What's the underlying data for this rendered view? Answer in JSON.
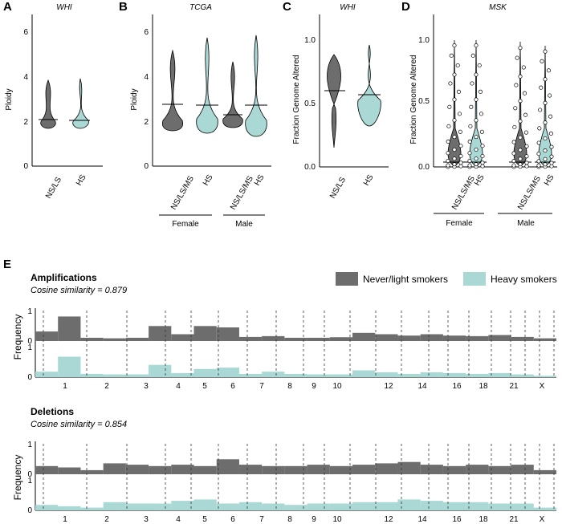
{
  "colors": {
    "grey": "#6d6d6d",
    "teal": "#a9d8d5",
    "teal_stroke": "#5aa9a5",
    "dark": "#000000"
  },
  "chart_data": [
    {
      "panel": "A",
      "type": "violin",
      "title": "WHI",
      "ylabel": "Ploidy",
      "ylim": [
        0,
        6.5
      ],
      "yticks": [
        "0",
        "2",
        "4",
        "6"
      ],
      "categories": [
        "NS/LS",
        "HS"
      ],
      "series": [
        {
          "category": "NS/LS",
          "color": "grey",
          "median": 2.1,
          "min": 1.7,
          "max": 3.7
        },
        {
          "category": "HS",
          "color": "teal",
          "median": 2.05,
          "min": 1.7,
          "max": 3.8
        }
      ]
    },
    {
      "panel": "B",
      "type": "violin",
      "title": "TCGA",
      "ylabel": "Ploidy",
      "ylim": [
        0,
        6.5
      ],
      "yticks": [
        "0",
        "2",
        "4",
        "6"
      ],
      "categories": [
        "NS/LS/MS",
        "HS",
        "NS/LS/MS",
        "HS"
      ],
      "groups": [
        "Female",
        "Male"
      ],
      "series": [
        {
          "category": "NS/LS/MS",
          "group": "Female",
          "color": "grey",
          "median": 2.75,
          "min": 1.6,
          "max": 5.1
        },
        {
          "category": "HS",
          "group": "Female",
          "color": "teal",
          "median": 2.7,
          "min": 1.5,
          "max": 5.7
        },
        {
          "category": "NS/LS/MS",
          "group": "Male",
          "color": "grey",
          "median": 2.3,
          "min": 1.8,
          "max": 4.6
        },
        {
          "category": "HS",
          "group": "Male",
          "color": "teal",
          "median": 2.7,
          "min": 1.3,
          "max": 5.8
        }
      ]
    },
    {
      "panel": "C",
      "type": "violin",
      "title": "WHI",
      "ylabel": "Fraction Genome Altered",
      "ylim": [
        0,
        1.1
      ],
      "yticks": [
        "0.0",
        "0.5",
        "1.0"
      ],
      "categories": [
        "NS/LS",
        "HS"
      ],
      "series": [
        {
          "category": "NS/LS",
          "color": "grey",
          "median": 0.6,
          "min": 0.15,
          "max": 0.88
        },
        {
          "category": "HS",
          "color": "teal",
          "median": 0.57,
          "min": 0.32,
          "max": 0.96
        }
      ]
    },
    {
      "panel": "D",
      "type": "violin",
      "title": "MSK",
      "ylabel": "Fraction Genome Altered",
      "ylim": [
        0,
        1.05
      ],
      "yticks": [
        "0.0",
        "0.5",
        "1.0"
      ],
      "categories": [
        "NS/LS/MS",
        "HS",
        "NS/LS/MS",
        "HS"
      ],
      "groups": [
        "Female",
        "Male"
      ],
      "series": [
        {
          "category": "NS/LS/MS",
          "group": "Female",
          "color": "grey",
          "median": 0.03,
          "min": 0,
          "max": 1.0
        },
        {
          "category": "HS",
          "group": "Female",
          "color": "teal",
          "median": 0.03,
          "min": 0,
          "max": 1.0
        },
        {
          "category": "NS/LS/MS",
          "group": "Male",
          "color": "grey",
          "median": 0.03,
          "min": 0,
          "max": 0.98
        },
        {
          "category": "HS",
          "group": "Male",
          "color": "teal",
          "median": 0.03,
          "min": 0,
          "max": 0.95
        }
      ]
    },
    {
      "panel": "E",
      "type": "area",
      "subtitle": "Amplifications",
      "cosine": "Cosine similarity = 0.879",
      "ylabel": "Frequency",
      "yticks": [
        "0",
        "1"
      ],
      "chromosomes": [
        "1",
        "2",
        "3",
        "4",
        "5",
        "6",
        "7",
        "8",
        "9",
        "10",
        "12",
        "14",
        "16",
        "18",
        "21",
        "X"
      ],
      "legend": [
        "Never/light smokers",
        "Heavy smokers"
      ],
      "series": [
        {
          "name": "Never/light smokers",
          "color": "grey",
          "values": [
            0.35,
            0.9,
            0.12,
            0.1,
            0.12,
            0.55,
            0.25,
            0.55,
            0.5,
            0.15,
            0.18,
            0.12,
            0.12,
            0.14,
            0.3,
            0.25,
            0.2,
            0.25,
            0.2,
            0.18,
            0.22,
            0.15,
            0.1
          ]
        },
        {
          "name": "Heavy smokers",
          "color": "teal",
          "values": [
            0.2,
            0.75,
            0.12,
            0.1,
            0.1,
            0.45,
            0.15,
            0.3,
            0.35,
            0.12,
            0.2,
            0.12,
            0.1,
            0.1,
            0.25,
            0.18,
            0.12,
            0.18,
            0.15,
            0.12,
            0.15,
            0.1,
            0.05
          ]
        }
      ]
    },
    {
      "panel": "E",
      "type": "area",
      "subtitle": "Deletions",
      "cosine": "Cosine similarity = 0.854",
      "ylabel": "Frequency",
      "yticks": [
        "0",
        "1"
      ],
      "chromosomes": [
        "1",
        "2",
        "3",
        "4",
        "5",
        "6",
        "7",
        "8",
        "9",
        "10",
        "12",
        "14",
        "16",
        "18",
        "21",
        "X"
      ],
      "series": [
        {
          "name": "Never/light smokers",
          "color": "grey",
          "values": [
            0.3,
            0.25,
            0.15,
            0.4,
            0.35,
            0.3,
            0.35,
            0.3,
            0.55,
            0.35,
            0.3,
            0.3,
            0.35,
            0.3,
            0.35,
            0.4,
            0.45,
            0.35,
            0.3,
            0.35,
            0.3,
            0.35,
            0.15
          ]
        },
        {
          "name": "Heavy smokers",
          "color": "teal",
          "values": [
            0.2,
            0.15,
            0.1,
            0.3,
            0.25,
            0.25,
            0.35,
            0.4,
            0.25,
            0.3,
            0.25,
            0.2,
            0.25,
            0.25,
            0.3,
            0.3,
            0.4,
            0.35,
            0.3,
            0.3,
            0.25,
            0.25,
            0.1
          ]
        }
      ]
    }
  ]
}
